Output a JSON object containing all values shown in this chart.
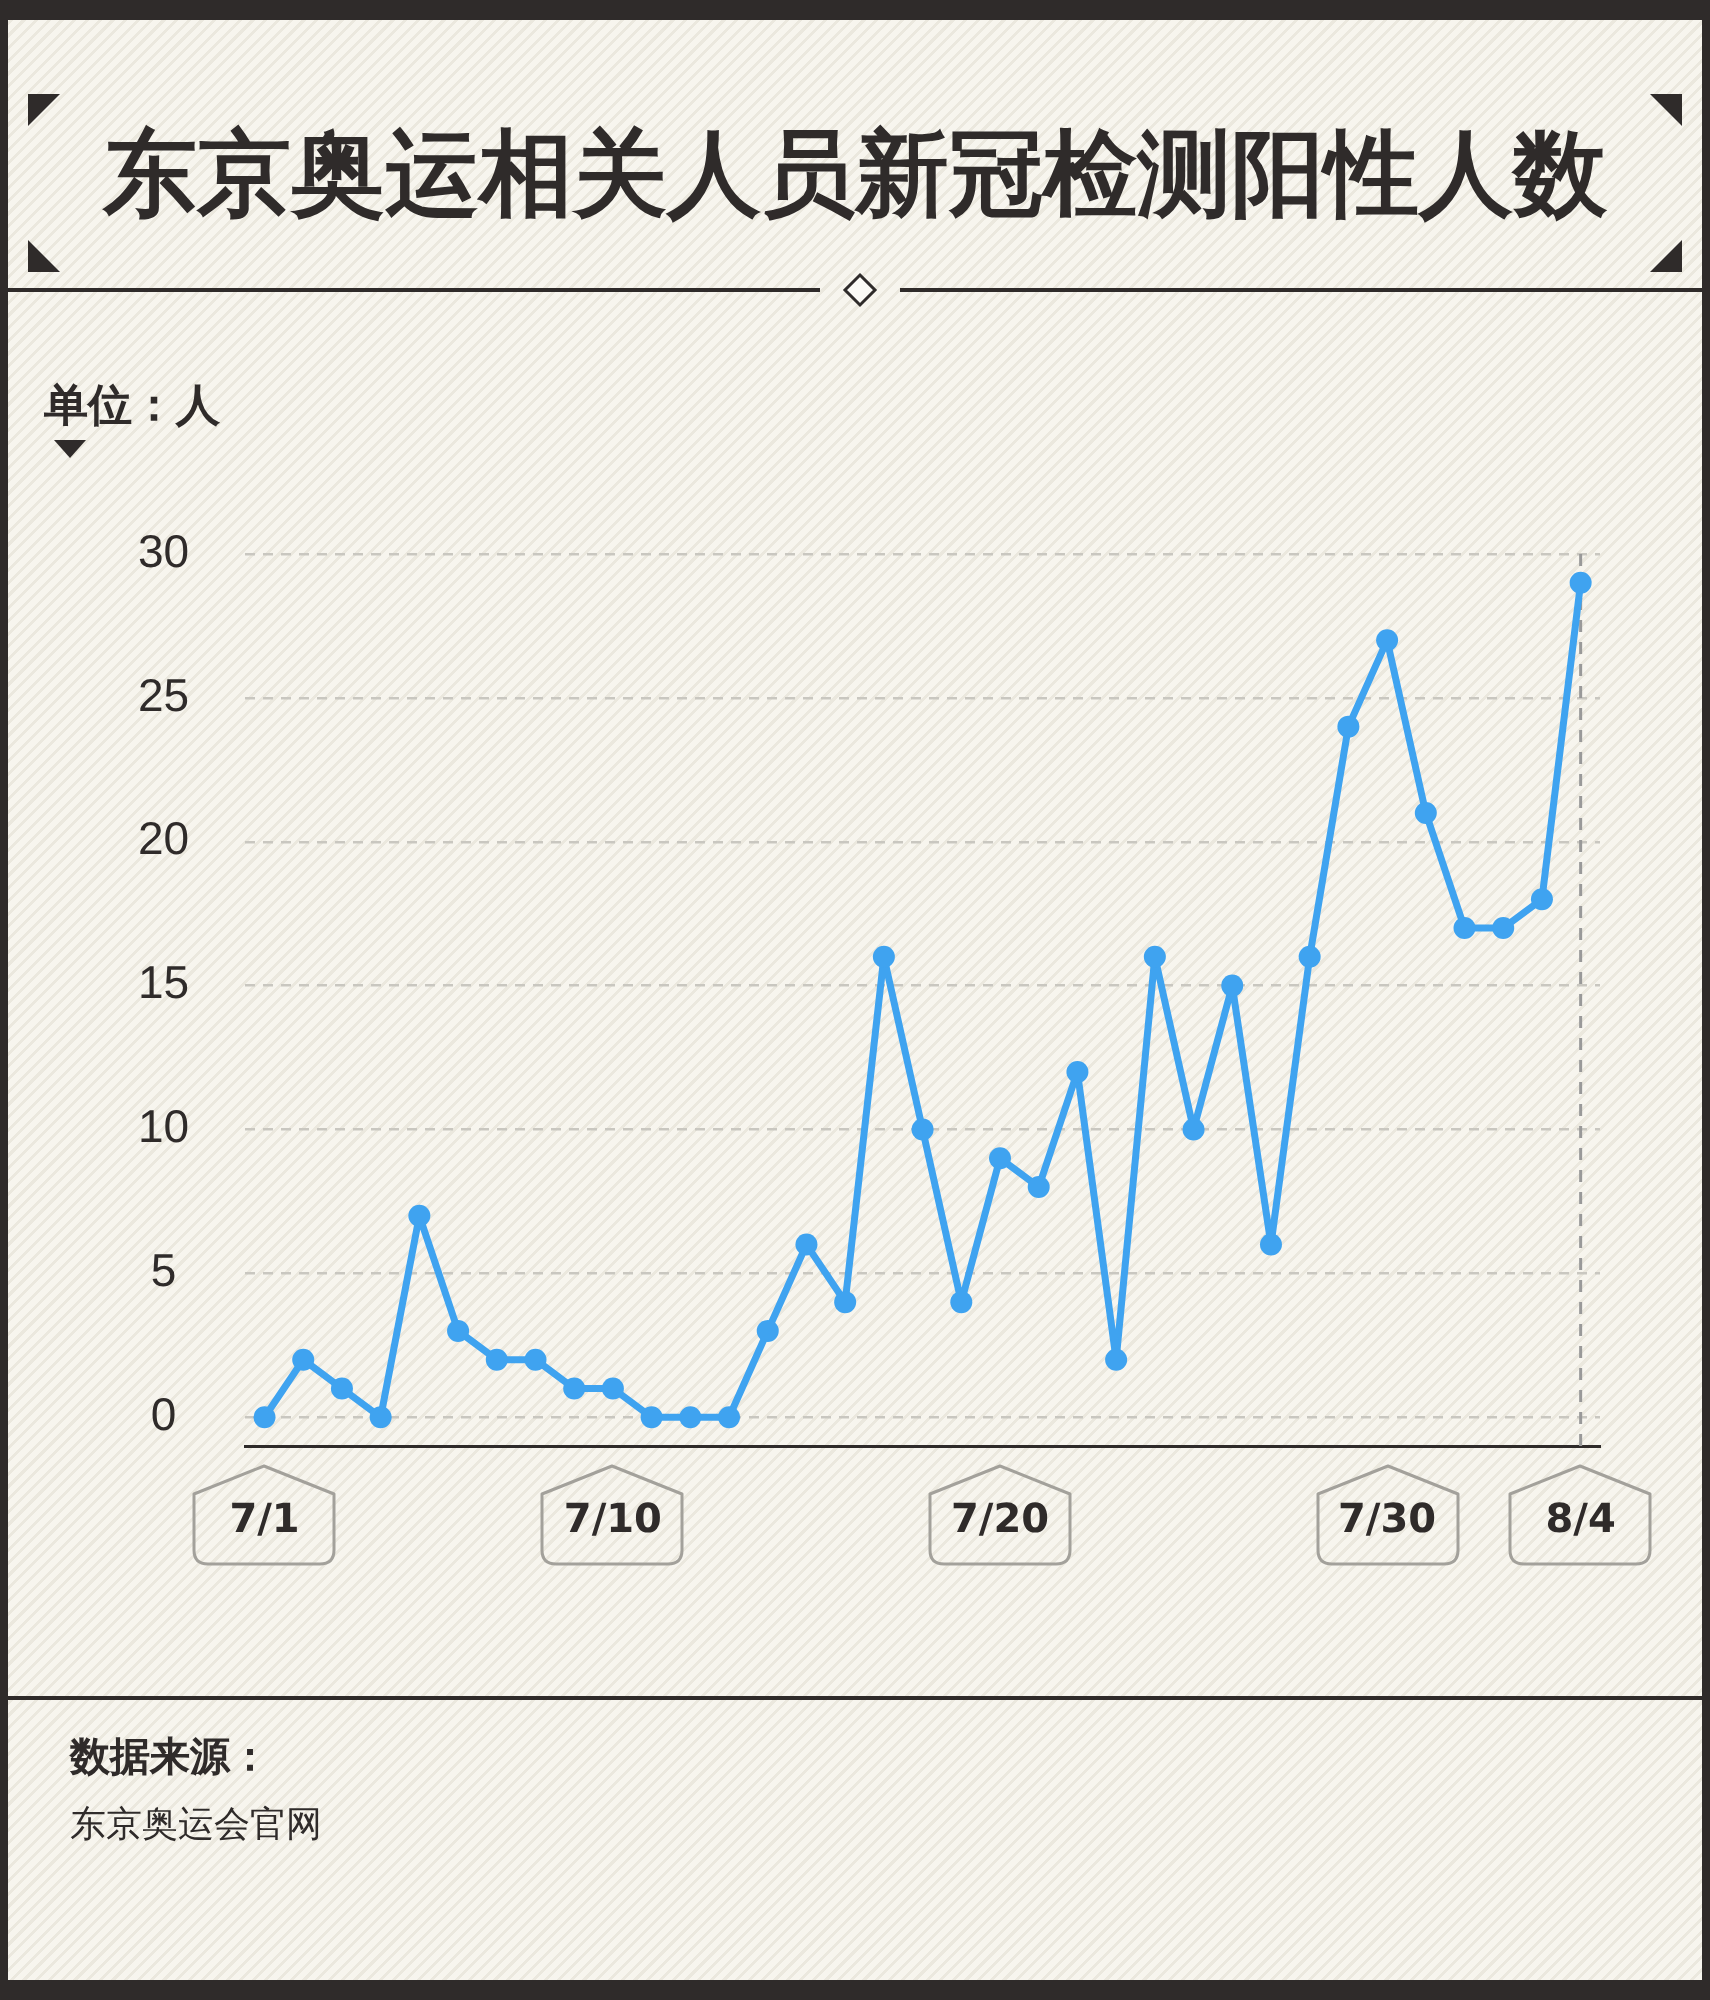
{
  "chart_data": {
    "type": "line",
    "title": "东京奥运相关人员新冠检测阳性人数",
    "ylabel": "单位：人",
    "categories": [
      "7/1",
      null,
      null,
      null,
      null,
      null,
      null,
      null,
      null,
      "7/10",
      null,
      null,
      null,
      null,
      null,
      null,
      null,
      null,
      null,
      "7/20",
      null,
      null,
      null,
      null,
      null,
      null,
      null,
      null,
      null,
      "7/30",
      null,
      null,
      null,
      null,
      "8/4"
    ],
    "series": [
      {
        "color": "#3fa3f0",
        "values": [
          0,
          2,
          1,
          0,
          7,
          3,
          2,
          2,
          1,
          1,
          0,
          0,
          0,
          3,
          6,
          4,
          16,
          10,
          4,
          9,
          8,
          12,
          2,
          16,
          10,
          15,
          6,
          16,
          24,
          27,
          21,
          17,
          17,
          18,
          29
        ]
      }
    ],
    "ylim": [
      -1,
      30
    ],
    "yticks": [
      0,
      5,
      10,
      15,
      20,
      25,
      30
    ],
    "grid": "y",
    "marker": "circle",
    "line_style": "solid",
    "ref_lines": [
      {
        "axis": "x",
        "value": "8/4",
        "color": "#999999",
        "line_style": "dashed"
      }
    ],
    "annotations": [
      "数据来源：",
      "东京奥运会官网"
    ]
  }
}
